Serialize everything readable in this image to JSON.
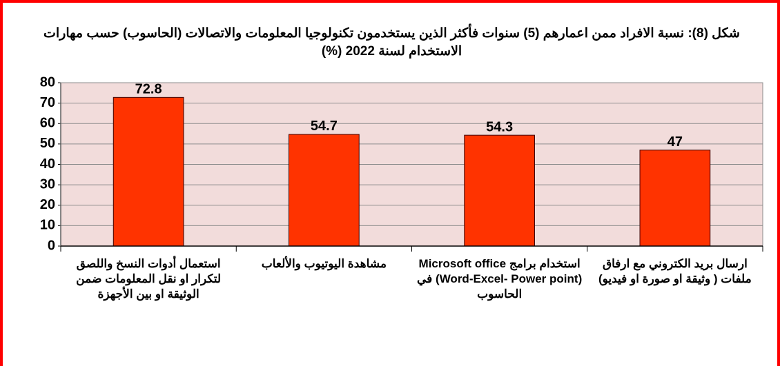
{
  "chart_data": {
    "type": "bar",
    "title": "شكل (8): نسبة الافراد ممن اعمارهم (5) سنوات فأكثر الذين يستخدمون تكنولوجيا المعلومات والاتصالات (الحاسوب) حسب مهارات الاستخدام لسنة 2022 (%)",
    "categories": [
      "استعمال أدوات النسخ واللصق لتكرار او نقل المعلومات ضمن الوثيقة او بين الأجهزة",
      "مشاهدة اليوتيوب والألعاب",
      "استخدام برامج Microsoft office (Word-Excel- Power point) في الحاسوب",
      "ارسال بريد الكتروني مع ارفاق ملفات ( وثيقة او صورة او فيديو)"
    ],
    "values": [
      72.8,
      54.7,
      54.3,
      47
    ],
    "color": "#ff3300",
    "ylim": [
      0,
      80
    ],
    "yticks": [
      0,
      10,
      20,
      30,
      40,
      50,
      60,
      70,
      80
    ],
    "grid": true
  }
}
